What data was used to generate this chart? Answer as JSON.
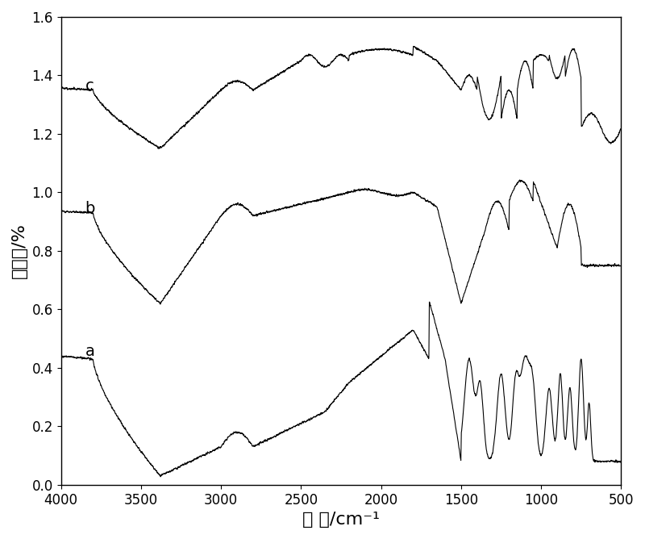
{
  "title": "",
  "xlabel": "波 数/cm⁻¹",
  "ylabel": "透过率/%",
  "xlim": [
    4000,
    500
  ],
  "ylim": [
    0.0,
    1.6
  ],
  "yticks": [
    0.0,
    0.2,
    0.4,
    0.6,
    0.8,
    1.0,
    1.2,
    1.4,
    1.6
  ],
  "xticks": [
    4000,
    3500,
    3000,
    2500,
    2000,
    1500,
    1000,
    500
  ],
  "label_a": "a",
  "label_b": "b",
  "label_c": "c",
  "line_color": "#000000",
  "background_color": "#ffffff",
  "xlabel_fontsize": 16,
  "ylabel_fontsize": 16,
  "tick_fontsize": 12
}
